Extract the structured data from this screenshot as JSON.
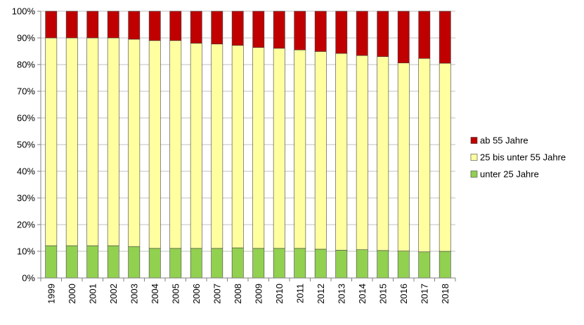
{
  "chart_data": {
    "type": "bar",
    "stacked": true,
    "percent_stacked": true,
    "categories": [
      "1999",
      "2000",
      "2001",
      "2002",
      "2003",
      "2004",
      "2005",
      "2006",
      "2007",
      "2008",
      "2009",
      "2010",
      "2011",
      "2012",
      "2013",
      "2014",
      "2015",
      "2016",
      "2017",
      "2018"
    ],
    "series": [
      {
        "name": "unter 25 Jahre",
        "color": "#92d050",
        "values": [
          12.1,
          12.1,
          12.1,
          12.1,
          11.8,
          11.1,
          11.1,
          11.1,
          11.1,
          11.3,
          11.1,
          11.1,
          11.1,
          10.8,
          10.4,
          10.6,
          10.3,
          10.1,
          9.8,
          10.0
        ]
      },
      {
        "name": "25 bis unter 55 Jahre",
        "color": "#ffffa0",
        "values": [
          77.9,
          77.9,
          77.9,
          77.9,
          77.7,
          77.9,
          77.9,
          76.9,
          76.6,
          75.9,
          75.3,
          75.0,
          74.4,
          74.1,
          73.8,
          72.8,
          72.7,
          70.5,
          72.5,
          70.5
        ]
      },
      {
        "name": "ab 55 Jahre",
        "color": "#c00000",
        "values": [
          10.0,
          10.0,
          10.0,
          10.0,
          10.5,
          11.0,
          11.0,
          12.0,
          12.3,
          12.8,
          13.6,
          13.9,
          14.5,
          15.1,
          15.8,
          16.6,
          17.0,
          19.4,
          17.7,
          19.5
        ]
      }
    ],
    "y_ticks": [
      "0%",
      "10%",
      "20%",
      "30%",
      "40%",
      "50%",
      "60%",
      "70%",
      "80%",
      "90%",
      "100%"
    ],
    "ylim": [
      0,
      100
    ],
    "grid": true,
    "legend_position": "right",
    "legend_order": [
      "ab 55 Jahre",
      "25 bis unter 55 Jahre",
      "unter 25 Jahre"
    ],
    "colors": {
      "grid": "#c0c0c0",
      "axis": "#808080",
      "bar_border": "#404040"
    }
  }
}
